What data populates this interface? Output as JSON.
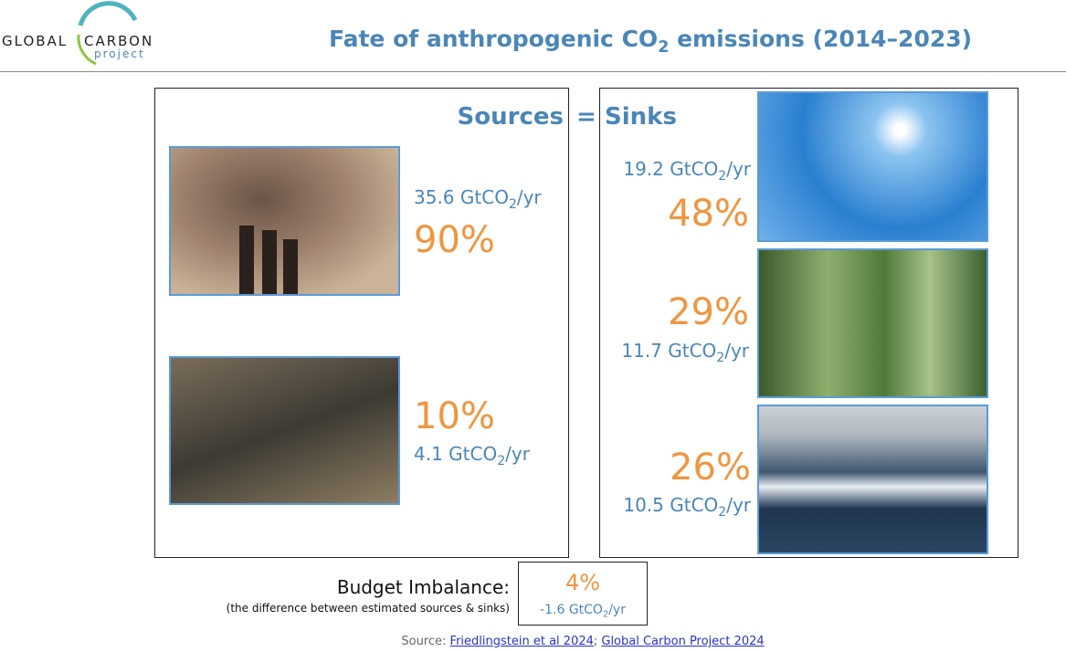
{
  "header": {
    "logo": {
      "word1": "GLOBAL",
      "word2": "CARBON",
      "word3": "project"
    },
    "title": {
      "before": "Fate of anthropogenic CO",
      "sub": "2",
      "after": " emissions (2014–2023)"
    }
  },
  "sources_heading": "Sources",
  "equals": "=",
  "sinks_heading": "Sinks",
  "sources": [
    {
      "amount": {
        "before": "35.6 GtCO",
        "sub": "2",
        "after": "/yr"
      },
      "percent": "90%"
    },
    {
      "amount": {
        "before": "4.1 GtCO",
        "sub": "2",
        "after": "/yr"
      },
      "percent": "10%"
    }
  ],
  "sinks": [
    {
      "amount": {
        "before": "19.2 GtCO",
        "sub": "2",
        "after": "/yr"
      },
      "percent": "48%"
    },
    {
      "amount": {
        "before": "11.7 GtCO",
        "sub": "2",
        "after": "/yr"
      },
      "percent": "29%"
    },
    {
      "amount": {
        "before": "10.5 GtCO",
        "sub": "2",
        "after": "/yr"
      },
      "percent": "26%"
    }
  ],
  "imbalance": {
    "label": "Budget Imbalance:",
    "note": "(the difference between estimated sources & sinks)",
    "percent": "4%",
    "amount": {
      "before": "-1.6 GtCO",
      "sub": "2",
      "after": "/yr"
    }
  },
  "source": {
    "label": "Source: ",
    "link1": "Friedlingstein et al 2024",
    "sep": "; ",
    "link2": "Global Carbon Project 2024"
  }
}
